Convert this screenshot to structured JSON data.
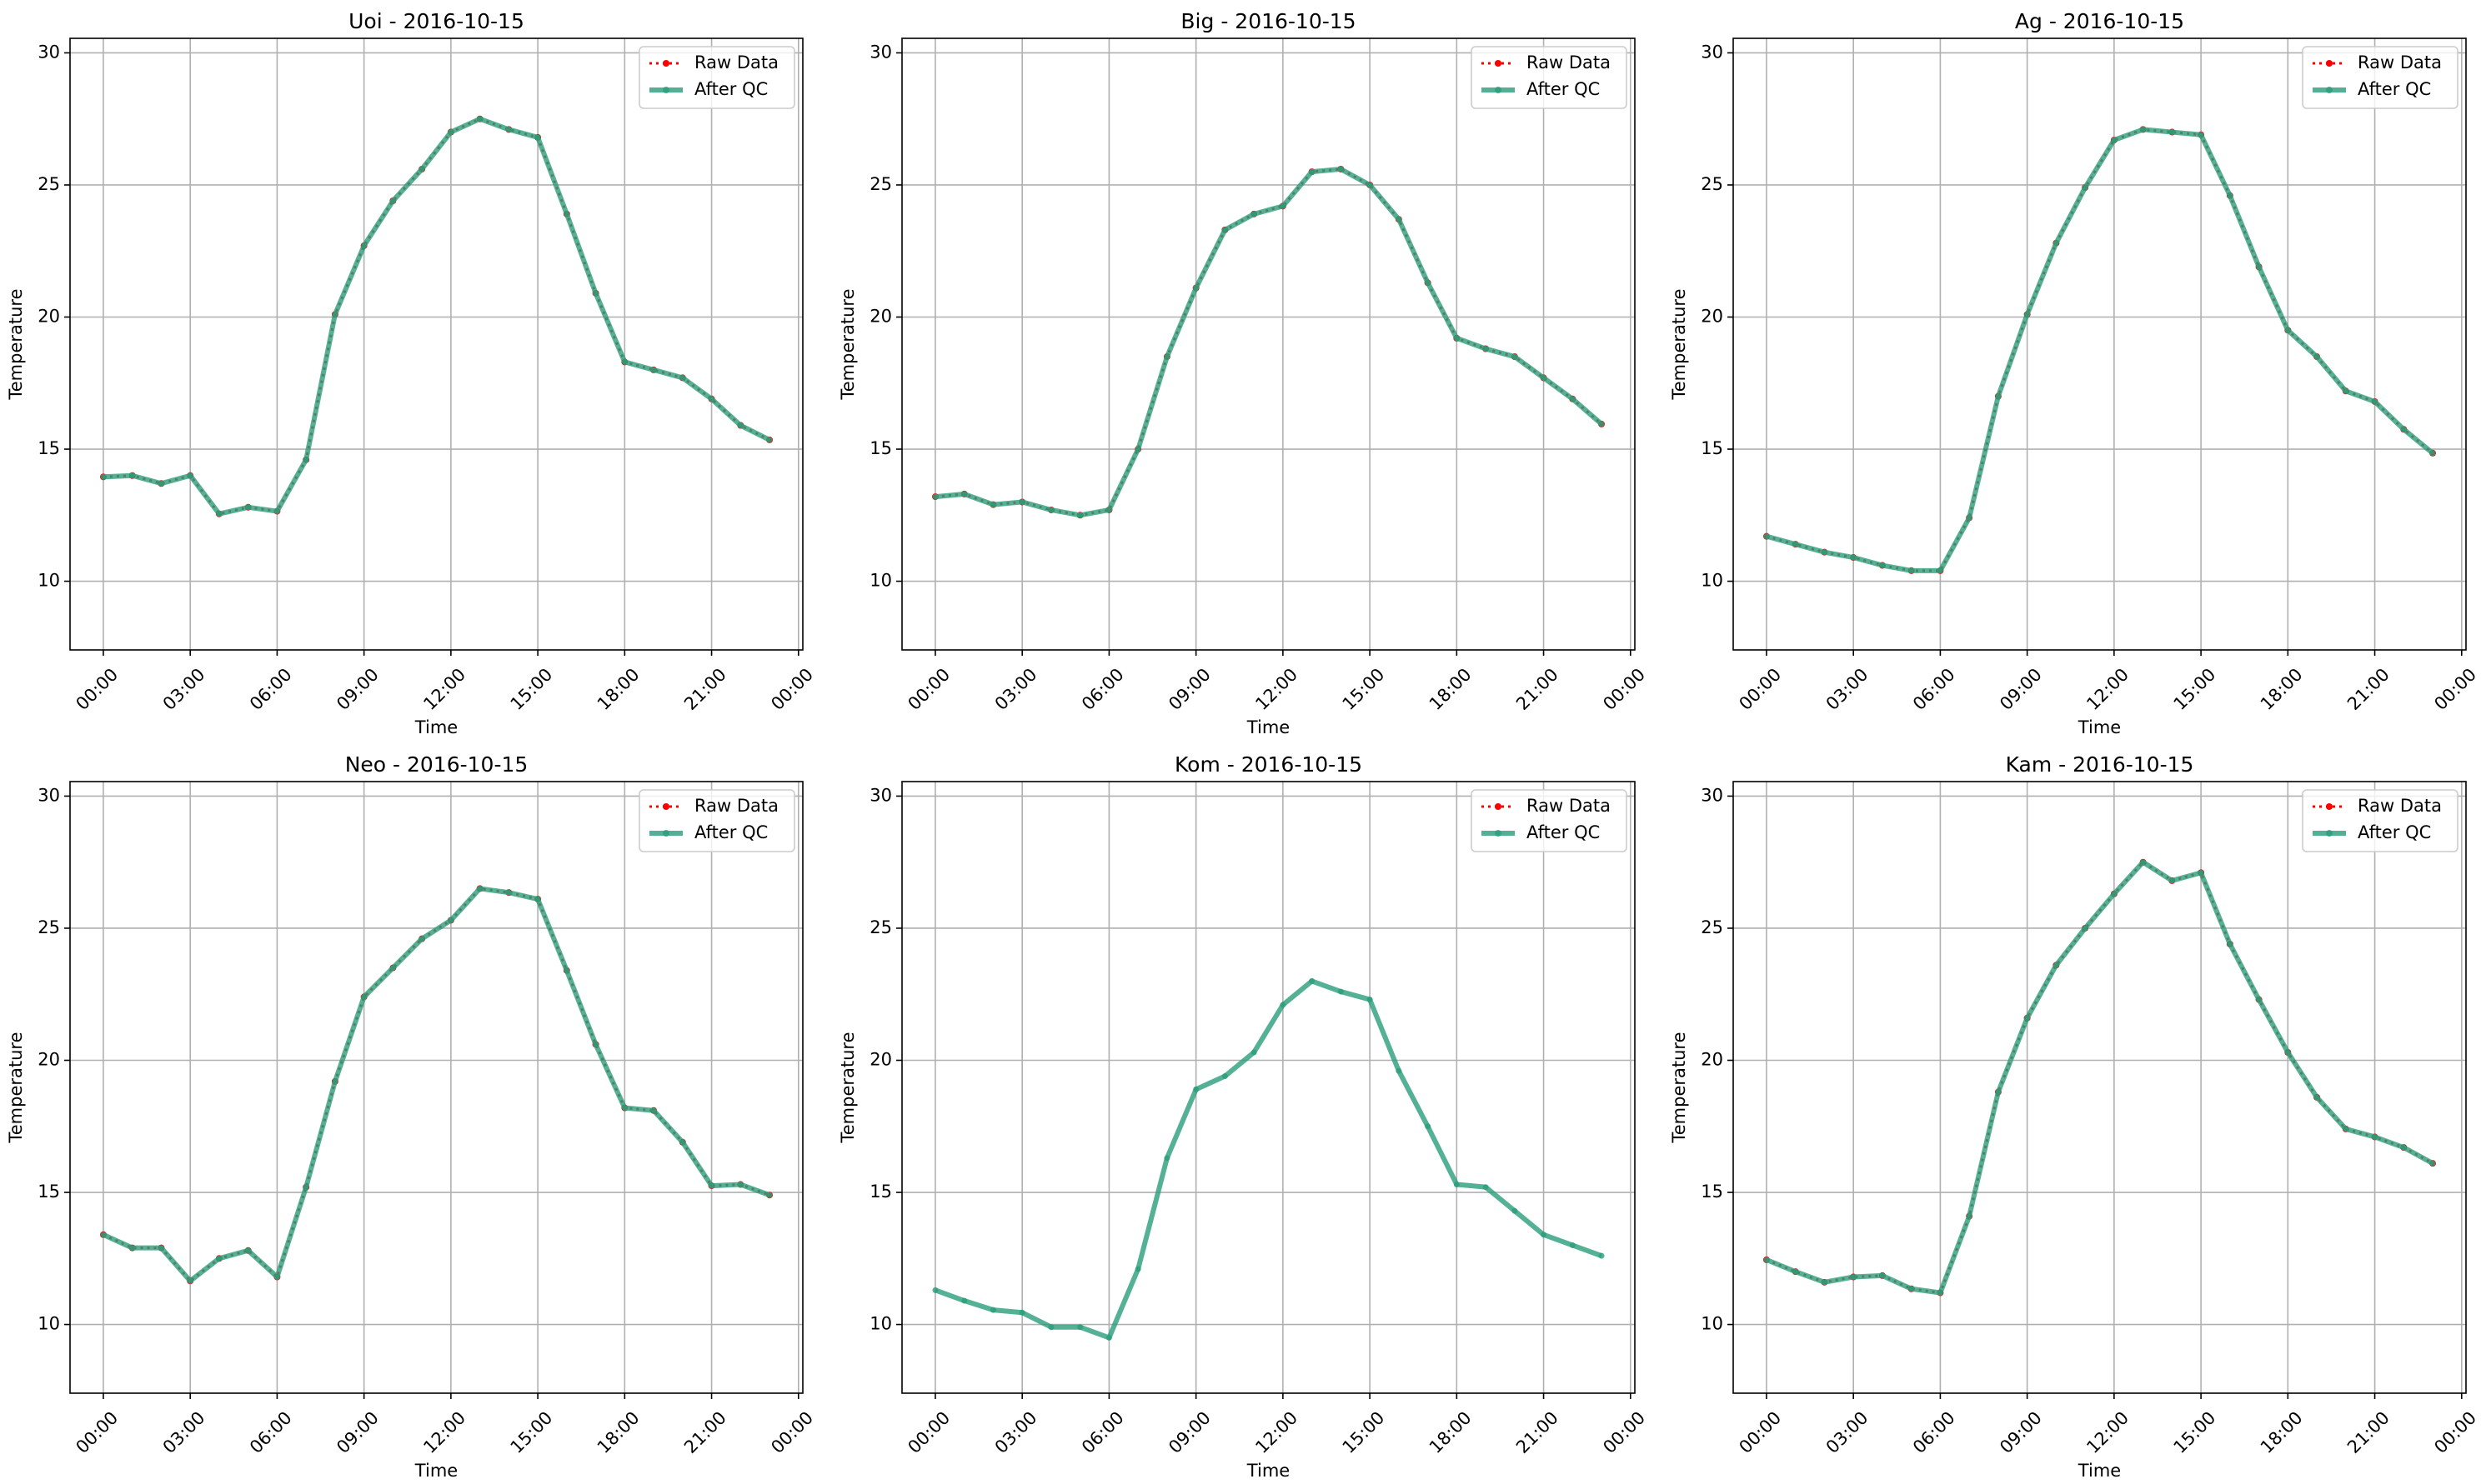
{
  "chart_data": [
    {
      "type": "line",
      "title": "Uoi - 2016-10-15",
      "xlabel": "Time",
      "ylabel": "Temperature",
      "x": [
        0,
        1,
        2,
        3,
        4,
        5,
        6,
        7,
        8,
        9,
        10,
        11,
        12,
        13,
        14,
        15,
        16,
        17,
        18,
        19,
        20,
        21,
        22,
        23
      ],
      "xlim": [
        -1.15,
        24.15
      ],
      "xticks": [
        {
          "value": 0,
          "label": "00:00"
        },
        {
          "value": 3,
          "label": "03:00"
        },
        {
          "value": 6,
          "label": "06:00"
        },
        {
          "value": 9,
          "label": "09:00"
        },
        {
          "value": 12,
          "label": "12:00"
        },
        {
          "value": 15,
          "label": "15:00"
        },
        {
          "value": 18,
          "label": "18:00"
        },
        {
          "value": 21,
          "label": "21:00"
        },
        {
          "value": 24,
          "label": "00:00"
        }
      ],
      "ylim": [
        7.4,
        30.55
      ],
      "yticks": [
        10,
        15,
        20,
        25,
        30
      ],
      "grid": true,
      "legend": "upper right",
      "series": [
        {
          "name": "Raw Data",
          "color": "#ff0000",
          "values": [
            13.95,
            14.0,
            13.7,
            14.0,
            12.55,
            12.8,
            12.65,
            14.6,
            20.1,
            22.7,
            24.4,
            25.6,
            27.0,
            27.5,
            27.1,
            26.8,
            23.9,
            20.9,
            18.3,
            18.0,
            17.7,
            16.9,
            15.9,
            15.35
          ]
        },
        {
          "name": "After QC",
          "color": "#2a9d7a",
          "values": [
            13.95,
            14.0,
            13.7,
            14.0,
            12.55,
            12.8,
            12.65,
            14.6,
            20.1,
            22.7,
            24.4,
            25.6,
            27.0,
            27.5,
            27.1,
            26.8,
            23.9,
            20.9,
            18.3,
            18.0,
            17.7,
            16.9,
            15.9,
            15.35
          ]
        }
      ]
    },
    {
      "type": "line",
      "title": "Big - 2016-10-15",
      "xlabel": "Time",
      "ylabel": "Temperature",
      "x": [
        0,
        1,
        2,
        3,
        4,
        5,
        6,
        7,
        8,
        9,
        10,
        11,
        12,
        13,
        14,
        15,
        16,
        17,
        18,
        19,
        20,
        21,
        22,
        23
      ],
      "xlim": [
        -1.15,
        24.15
      ],
      "xticks": [
        {
          "value": 0,
          "label": "00:00"
        },
        {
          "value": 3,
          "label": "03:00"
        },
        {
          "value": 6,
          "label": "06:00"
        },
        {
          "value": 9,
          "label": "09:00"
        },
        {
          "value": 12,
          "label": "12:00"
        },
        {
          "value": 15,
          "label": "15:00"
        },
        {
          "value": 18,
          "label": "18:00"
        },
        {
          "value": 21,
          "label": "21:00"
        },
        {
          "value": 24,
          "label": "00:00"
        }
      ],
      "ylim": [
        7.4,
        30.55
      ],
      "yticks": [
        10,
        15,
        20,
        25,
        30
      ],
      "grid": true,
      "legend": "upper right",
      "series": [
        {
          "name": "Raw Data",
          "color": "#ff0000",
          "values": [
            13.2,
            13.3,
            12.9,
            13.0,
            12.7,
            12.5,
            12.7,
            15.0,
            18.5,
            21.1,
            23.3,
            23.9,
            24.2,
            25.5,
            25.6,
            25.0,
            23.7,
            21.3,
            19.2,
            18.8,
            18.5,
            17.7,
            16.9,
            15.95
          ]
        },
        {
          "name": "After QC",
          "color": "#2a9d7a",
          "values": [
            13.2,
            13.3,
            12.9,
            13.0,
            12.7,
            12.5,
            12.7,
            15.0,
            18.5,
            21.1,
            23.3,
            23.9,
            24.2,
            25.5,
            25.6,
            25.0,
            23.7,
            21.3,
            19.2,
            18.8,
            18.5,
            17.7,
            16.9,
            15.95
          ]
        }
      ]
    },
    {
      "type": "line",
      "title": "Ag - 2016-10-15",
      "xlabel": "Time",
      "ylabel": "Temperature",
      "x": [
        0,
        1,
        2,
        3,
        4,
        5,
        6,
        7,
        8,
        9,
        10,
        11,
        12,
        13,
        14,
        15,
        16,
        17,
        18,
        19,
        20,
        21,
        22,
        23
      ],
      "xlim": [
        -1.15,
        24.15
      ],
      "xticks": [
        {
          "value": 0,
          "label": "00:00"
        },
        {
          "value": 3,
          "label": "03:00"
        },
        {
          "value": 6,
          "label": "06:00"
        },
        {
          "value": 9,
          "label": "09:00"
        },
        {
          "value": 12,
          "label": "12:00"
        },
        {
          "value": 15,
          "label": "15:00"
        },
        {
          "value": 18,
          "label": "18:00"
        },
        {
          "value": 21,
          "label": "21:00"
        },
        {
          "value": 24,
          "label": "00:00"
        }
      ],
      "ylim": [
        7.4,
        30.55
      ],
      "yticks": [
        10,
        15,
        20,
        25,
        30
      ],
      "grid": true,
      "legend": "upper right",
      "series": [
        {
          "name": "Raw Data",
          "color": "#ff0000",
          "values": [
            11.7,
            11.4,
            11.1,
            10.9,
            10.6,
            10.4,
            10.4,
            12.4,
            17.0,
            20.1,
            22.8,
            24.9,
            26.7,
            27.1,
            27.0,
            26.9,
            24.6,
            21.9,
            19.5,
            18.5,
            17.2,
            16.8,
            15.75,
            14.85
          ]
        },
        {
          "name": "After QC",
          "color": "#2a9d7a",
          "values": [
            11.7,
            11.4,
            11.1,
            10.9,
            10.6,
            10.4,
            10.4,
            12.4,
            17.0,
            20.1,
            22.8,
            24.9,
            26.7,
            27.1,
            27.0,
            26.9,
            24.6,
            21.9,
            19.5,
            18.5,
            17.2,
            16.8,
            15.75,
            14.85
          ]
        }
      ]
    },
    {
      "type": "line",
      "title": "Neo - 2016-10-15",
      "xlabel": "Time",
      "ylabel": "Temperature",
      "x": [
        0,
        1,
        2,
        3,
        4,
        5,
        6,
        7,
        8,
        9,
        10,
        11,
        12,
        13,
        14,
        15,
        16,
        17,
        18,
        19,
        20,
        21,
        22,
        23
      ],
      "xlim": [
        -1.15,
        24.15
      ],
      "xticks": [
        {
          "value": 0,
          "label": "00:00"
        },
        {
          "value": 3,
          "label": "03:00"
        },
        {
          "value": 6,
          "label": "06:00"
        },
        {
          "value": 9,
          "label": "09:00"
        },
        {
          "value": 12,
          "label": "12:00"
        },
        {
          "value": 15,
          "label": "15:00"
        },
        {
          "value": 18,
          "label": "18:00"
        },
        {
          "value": 21,
          "label": "21:00"
        },
        {
          "value": 24,
          "label": "00:00"
        }
      ],
      "ylim": [
        7.4,
        30.55
      ],
      "yticks": [
        10,
        15,
        20,
        25,
        30
      ],
      "grid": true,
      "legend": "upper right",
      "series": [
        {
          "name": "Raw Data",
          "color": "#ff0000",
          "values": [
            13.4,
            12.9,
            12.9,
            11.65,
            12.5,
            12.8,
            11.8,
            15.2,
            19.2,
            22.4,
            23.5,
            24.6,
            25.3,
            26.5,
            26.35,
            26.1,
            23.4,
            20.6,
            18.2,
            18.1,
            16.9,
            15.25,
            15.3,
            14.9
          ]
        },
        {
          "name": "After QC",
          "color": "#2a9d7a",
          "values": [
            13.4,
            12.9,
            12.9,
            11.65,
            12.5,
            12.8,
            11.8,
            15.2,
            19.2,
            22.4,
            23.5,
            24.6,
            25.3,
            26.5,
            26.35,
            26.1,
            23.4,
            20.6,
            18.2,
            18.1,
            16.9,
            15.25,
            15.3,
            14.9
          ]
        }
      ]
    },
    {
      "type": "line",
      "title": "Kom - 2016-10-15",
      "xlabel": "Time",
      "ylabel": "Temperature",
      "x": [
        0,
        1,
        2,
        3,
        4,
        5,
        6,
        7,
        8,
        9,
        10,
        11,
        12,
        13,
        14,
        15,
        16,
        17,
        18,
        19,
        20,
        21,
        22,
        23
      ],
      "xlim": [
        -1.15,
        24.15
      ],
      "xticks": [
        {
          "value": 0,
          "label": "00:00"
        },
        {
          "value": 3,
          "label": "03:00"
        },
        {
          "value": 6,
          "label": "06:00"
        },
        {
          "value": 9,
          "label": "09:00"
        },
        {
          "value": 12,
          "label": "12:00"
        },
        {
          "value": 15,
          "label": "15:00"
        },
        {
          "value": 18,
          "label": "18:00"
        },
        {
          "value": 21,
          "label": "21:00"
        },
        {
          "value": 24,
          "label": "00:00"
        }
      ],
      "ylim": [
        7.4,
        30.55
      ],
      "yticks": [
        10,
        15,
        20,
        25,
        30
      ],
      "grid": true,
      "legend": "upper right",
      "series": [
        {
          "name": "Raw Data",
          "color": "#ff0000",
          "values": [
            null,
            null,
            null,
            null,
            null,
            null,
            null,
            null,
            null,
            null,
            null,
            null,
            null,
            null,
            null,
            null,
            null,
            null,
            null,
            null,
            null,
            null,
            null,
            null
          ]
        },
        {
          "name": "After QC",
          "color": "#2a9d7a",
          "values": [
            11.3,
            10.9,
            10.55,
            10.45,
            9.9,
            9.9,
            9.5,
            12.1,
            16.3,
            18.9,
            19.4,
            20.3,
            22.1,
            23.0,
            22.6,
            22.3,
            19.6,
            17.5,
            15.3,
            15.2,
            14.3,
            13.4,
            13.0,
            12.6
          ]
        }
      ]
    },
    {
      "type": "line",
      "title": "Kam - 2016-10-15",
      "xlabel": "Time",
      "ylabel": "Temperature",
      "x": [
        0,
        1,
        2,
        3,
        4,
        5,
        6,
        7,
        8,
        9,
        10,
        11,
        12,
        13,
        14,
        15,
        16,
        17,
        18,
        19,
        20,
        21,
        22,
        23
      ],
      "xlim": [
        -1.15,
        24.15
      ],
      "xticks": [
        {
          "value": 0,
          "label": "00:00"
        },
        {
          "value": 3,
          "label": "03:00"
        },
        {
          "value": 6,
          "label": "06:00"
        },
        {
          "value": 9,
          "label": "09:00"
        },
        {
          "value": 12,
          "label": "12:00"
        },
        {
          "value": 15,
          "label": "15:00"
        },
        {
          "value": 18,
          "label": "18:00"
        },
        {
          "value": 21,
          "label": "21:00"
        },
        {
          "value": 24,
          "label": "00:00"
        }
      ],
      "ylim": [
        7.4,
        30.55
      ],
      "yticks": [
        10,
        15,
        20,
        25,
        30
      ],
      "grid": true,
      "legend": "upper right",
      "series": [
        {
          "name": "Raw Data",
          "color": "#ff0000",
          "values": [
            12.45,
            12.0,
            11.6,
            11.8,
            11.85,
            11.35,
            11.2,
            14.1,
            18.8,
            21.6,
            23.6,
            25.0,
            26.3,
            27.5,
            26.8,
            27.1,
            24.4,
            22.3,
            20.3,
            18.6,
            17.4,
            17.1,
            16.7,
            16.1
          ]
        },
        {
          "name": "After QC",
          "color": "#2a9d7a",
          "values": [
            12.45,
            12.0,
            11.6,
            11.8,
            11.85,
            11.35,
            11.2,
            14.1,
            18.8,
            21.6,
            23.6,
            25.0,
            26.3,
            27.5,
            26.8,
            27.1,
            24.4,
            22.3,
            20.3,
            18.6,
            17.4,
            17.1,
            16.7,
            16.1
          ]
        }
      ]
    }
  ]
}
